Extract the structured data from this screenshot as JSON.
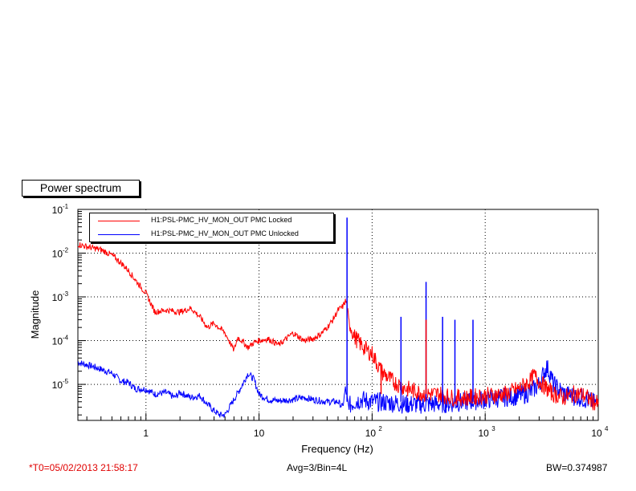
{
  "title": "Power spectrum",
  "footer": {
    "t0": "*T0=05/02/2013 21:58:17",
    "avg": "Avg=3/Bin=4L",
    "bw": "BW=0.374987"
  },
  "chart_data": {
    "type": "line",
    "xlabel": "Frequency (Hz)",
    "ylabel": "Magnitude",
    "xscale": "log",
    "yscale": "log",
    "xlim": [
      0.25,
      10000
    ],
    "ylim": [
      1.5e-06,
      0.1
    ],
    "grid": true,
    "legend_position": "top-left",
    "x_ticks": [
      {
        "value": 1,
        "label": "1"
      },
      {
        "value": 10,
        "label": "10"
      },
      {
        "value": 100,
        "base": "10",
        "exp": "2"
      },
      {
        "value": 1000,
        "base": "10",
        "exp": "3"
      },
      {
        "value": 10000,
        "base": "10",
        "exp": "4"
      }
    ],
    "y_ticks": [
      {
        "value": 1e-05,
        "base": "10",
        "exp": "-5"
      },
      {
        "value": 0.0001,
        "base": "10",
        "exp": "-4"
      },
      {
        "value": 0.001,
        "base": "10",
        "exp": "-3"
      },
      {
        "value": 0.01,
        "base": "10",
        "exp": "-2"
      },
      {
        "value": 0.1,
        "base": "10",
        "exp": "-1"
      }
    ],
    "series": [
      {
        "name": "H1:PSL-PMC_HV_MON_OUT PMC Locked",
        "color": "#ff0000",
        "x": [
          0.25,
          0.3,
          0.4,
          0.5,
          0.6,
          0.7,
          0.8,
          1.0,
          1.2,
          1.5,
          2.0,
          2.5,
          3.0,
          3.5,
          4.0,
          5.0,
          6.0,
          6.5,
          7.0,
          8.0,
          9.0,
          10,
          12,
          15,
          20,
          25,
          30,
          35,
          40,
          45,
          50,
          55,
          58,
          60,
          62,
          65,
          70,
          80,
          90,
          100,
          120,
          150,
          200,
          300,
          400,
          500,
          700,
          1000,
          1500,
          2000,
          2500,
          2700,
          3000,
          3500,
          4000,
          5000,
          6000,
          7000,
          8000,
          9000,
          10000
        ],
        "y": [
          0.016,
          0.014,
          0.012,
          0.009,
          0.006,
          0.004,
          0.0025,
          0.0012,
          0.00045,
          0.0005,
          0.00045,
          0.00055,
          0.00035,
          0.0002,
          0.00025,
          0.00015,
          6e-05,
          0.00012,
          0.0001,
          7e-05,
          9e-05,
          0.0001,
          0.00011,
          8e-05,
          0.00015,
          0.0001,
          0.00011,
          0.00014,
          0.0002,
          0.0003,
          0.0005,
          0.0006,
          0.0008,
          0.0007,
          0.0003,
          0.0002,
          0.00012,
          8e-05,
          6e-05,
          5e-05,
          2e-05,
          1.2e-05,
          8e-06,
          6e-06,
          6e-06,
          5e-06,
          5e-06,
          5.5e-06,
          6e-06,
          8e-06,
          1.2e-05,
          1.6e-05,
          1.2e-05,
          8e-06,
          6e-06,
          5e-06,
          6e-06,
          6e-06,
          5e-06,
          4e-06,
          3.5e-06
        ]
      },
      {
        "name": "H1:PSL-PMC_HV_MON_OUT PMC Unlocked",
        "color": "#0000ff",
        "x": [
          0.25,
          0.35,
          0.5,
          0.6,
          0.7,
          0.8,
          1.0,
          1.2,
          1.5,
          1.8,
          2.0,
          2.5,
          3.0,
          3.5,
          4.0,
          4.5,
          5.0,
          6.0,
          7.0,
          8.0,
          9.0,
          10,
          12,
          15,
          20,
          25,
          30,
          40,
          50,
          55,
          58,
          60,
          62,
          65,
          70,
          80,
          100,
          150,
          200,
          300,
          500,
          1000,
          2000,
          2500,
          3000,
          3300,
          3500,
          3800,
          4000,
          5000,
          7000,
          10000
        ],
        "y": [
          3.2e-05,
          2.5e-05,
          1.8e-05,
          1.2e-05,
          1.1e-05,
          8e-06,
          7.8e-06,
          6e-06,
          6.5e-06,
          5e-06,
          6.5e-06,
          5e-06,
          5.5e-06,
          3.5e-06,
          2.5e-06,
          2e-06,
          2e-06,
          4.5e-06,
          9e-06,
          1.8e-05,
          1.3e-05,
          6e-06,
          4.5e-06,
          4.2e-06,
          4.5e-06,
          5e-06,
          4.5e-06,
          4e-06,
          4e-06,
          3e-06,
          8e-06,
          5e-06,
          3e-06,
          3.5e-06,
          4e-06,
          4.5e-06,
          4e-06,
          3.8e-06,
          3.5e-06,
          3.5e-06,
          3.7e-06,
          4.5e-06,
          5.5e-06,
          6.5e-06,
          1e-05,
          1.8e-05,
          2.5e-05,
          1.6e-05,
          1e-05,
          6e-06,
          5e-06,
          3.5e-06
        ]
      }
    ],
    "spikes": {
      "blue": [
        {
          "x": 60,
          "y": 0.065
        },
        {
          "x": 180,
          "y": 0.00035
        },
        {
          "x": 300,
          "y": 0.0022
        },
        {
          "x": 420,
          "y": 0.00035
        },
        {
          "x": 540,
          "y": 0.0003
        },
        {
          "x": 780,
          "y": 0.0003
        }
      ],
      "red": [
        {
          "x": 300,
          "y": 0.0003
        },
        {
          "x": 120,
          "y": 3e-05
        }
      ]
    }
  }
}
